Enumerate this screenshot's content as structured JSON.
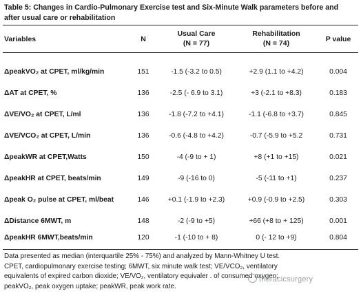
{
  "title_line1": "Table 5: Changes in Cardio-Pulmonary Exercise test and Six-Minute Walk parameters before and",
  "title_line2": "after usual care or rehabilitation",
  "headers": {
    "variables": "Variables",
    "n": "N",
    "usual_care": "Usual Care",
    "usual_care_n": "(N = 77)",
    "rehab": "Rehabilitation",
    "rehab_n": "(N = 74)",
    "p": "P value"
  },
  "rows": [
    {
      "variable": "ΔpeakVO₂ at CPET, ml/kg/min",
      "n": "151",
      "usual_care": "-1.5 (-3.2 to 0.5)",
      "rehab": "+2.9 (1.1 to +4.2)",
      "p": "0.004"
    },
    {
      "variable": "ΔAT at CPET, %",
      "n": "136",
      "usual_care": "-2.5 (- 6.9 to 3.1)",
      "rehab": "+3 (-2.1 to +8.3)",
      "p": "0.183"
    },
    {
      "variable": "ΔVE/VO₂ at CPET, L/ml",
      "n": "136",
      "usual_care": "-1.8 (-7.2 to +4.1)",
      "rehab": "-1.1 (-6.8 to +3.7)",
      "p": "0.845"
    },
    {
      "variable": "ΔVE/VCO₂ at CPET, L/min",
      "n": "136",
      "usual_care": "-0.6 (-4.8 to +4.2)",
      "rehab": "-0.7 (-5.9 to +5.2",
      "p": "0.731"
    },
    {
      "variable": "ΔpeakWR at CPET,Watts",
      "n": "150",
      "usual_care": "-4 (-9 to + 1)",
      "rehab": "+8 (+1 to +15)",
      "p": "0.021"
    },
    {
      "variable": "ΔpeakHR at CPET, beats/min",
      "n": "149",
      "usual_care": "-9 (-16 to 0)",
      "rehab": "-5 (-11 to +1)",
      "p": "0.237"
    },
    {
      "variable": "Δpeak O₂ pulse at CPET, ml/beat",
      "n": "146",
      "usual_care": "+0.1 (-1.9 to +2.3)",
      "rehab": "+0.9 (-0.9 to +2.5)",
      "p": "0.303"
    },
    {
      "variable": "ΔDistance 6MWT, m",
      "n": "148",
      "usual_care": "-2 (-9 to +5)",
      "rehab": "+66 (+8 to + 125)",
      "p": "0.001"
    },
    {
      "variable": "ΔpeakHR 6MWT,beats/min",
      "n": "120",
      "usual_care": "-1 (-10 to + 8)",
      "rehab": "0 (- 12 to +9)",
      "p": "0.804"
    }
  ],
  "notes": [
    "Data presented as median (interquartile 25% - 75%) and analyzed by Mann-Whitney U test.",
    "CPET, cardiopulmonary exercise testing; 6MWT, six minute walk test; VE/VCO₂, ventilatory",
    "equivalents of expired carbon dioxide; VE/VO₂, ventilatory equivaler . of consumed oxygen;",
    "peakVO₂, peak oxygen uptake; peakWR, peak work rate."
  ],
  "watermark": "thoracicsurgery"
}
